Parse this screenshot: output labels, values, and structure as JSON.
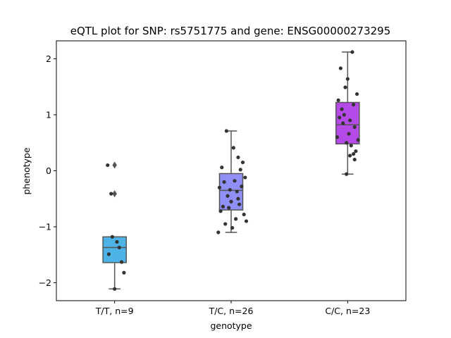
{
  "chart_data": {
    "type": "box",
    "title": "eQTL plot for SNP: rs5751775 and gene: ENSG00000273295",
    "xlabel": "genotype",
    "ylabel": "phenotype",
    "ylim": [
      -2.32,
      2.32
    ],
    "yticks": [
      -2,
      -1,
      0,
      1,
      2
    ],
    "yticklabels": [
      "−2",
      "−1",
      "0",
      "1",
      "2"
    ],
    "categories": [
      "T/T, n=9",
      "T/C, n=26",
      "C/C, n=23"
    ],
    "box_colors": [
      "#4db3e6",
      "#8f8ff5",
      "#b64ae8"
    ],
    "edge_color": "#555555",
    "point_color": "#333333",
    "boxes": [
      {
        "whisker_low": -2.11,
        "q1": -1.64,
        "median": -1.37,
        "q3": -1.18,
        "whisker_high": -1.18,
        "fliers": [
          0.1,
          -0.41
        ]
      },
      {
        "whisker_low": -1.1,
        "q1": -0.7,
        "median": -0.35,
        "q3": -0.05,
        "whisker_high": 0.71,
        "fliers": []
      },
      {
        "whisker_low": -0.06,
        "q1": 0.48,
        "median": 0.82,
        "q3": 1.22,
        "whisker_high": 2.12,
        "fliers": []
      }
    ],
    "points": [
      {
        "x": [
          -0.06,
          -0.03,
          0.0,
          -0.02,
          0.02,
          0.04,
          -0.05,
          0.06,
          0.08
        ],
        "y": [
          0.1,
          -0.41,
          -2.11,
          -1.18,
          -1.27,
          -1.37,
          -1.49,
          -1.63,
          -1.82
        ]
      },
      {
        "x": [
          -0.04,
          0.02,
          0.06,
          0.1,
          0.08,
          -0.08,
          0.12,
          -0.06,
          0.03,
          0.09,
          -0.1,
          0.05,
          -0.03,
          0.0,
          0.07,
          -0.07,
          0.11,
          -0.02,
          -0.09,
          0.04,
          0.13,
          -0.05,
          0.01,
          -0.11,
          0.06,
          -0.01
        ],
        "y": [
          0.71,
          0.41,
          0.24,
          0.15,
          0.02,
          0.06,
          -0.12,
          -0.2,
          -0.18,
          -0.28,
          -0.3,
          -0.37,
          -0.45,
          -0.55,
          -0.6,
          -0.64,
          -0.78,
          -0.66,
          -0.72,
          -0.86,
          -0.9,
          -0.95,
          -1.02,
          -1.1,
          -0.5,
          -0.34
        ]
      },
      {
        "x": [
          0.04,
          -0.06,
          0.0,
          -0.02,
          0.08,
          0.05,
          -0.08,
          -0.05,
          -0.03,
          0.02,
          -0.07,
          0.06,
          -0.04,
          0.01,
          0.09,
          -0.01,
          0.03,
          0.07,
          -0.09,
          0.05,
          0.02,
          0.06,
          -0.01
        ],
        "y": [
          2.12,
          1.83,
          1.64,
          1.49,
          1.37,
          1.18,
          1.26,
          1.1,
          1.0,
          0.9,
          0.95,
          0.78,
          0.85,
          0.66,
          0.55,
          0.5,
          0.45,
          0.35,
          0.6,
          0.3,
          0.27,
          0.2,
          -0.06
        ]
      }
    ]
  }
}
